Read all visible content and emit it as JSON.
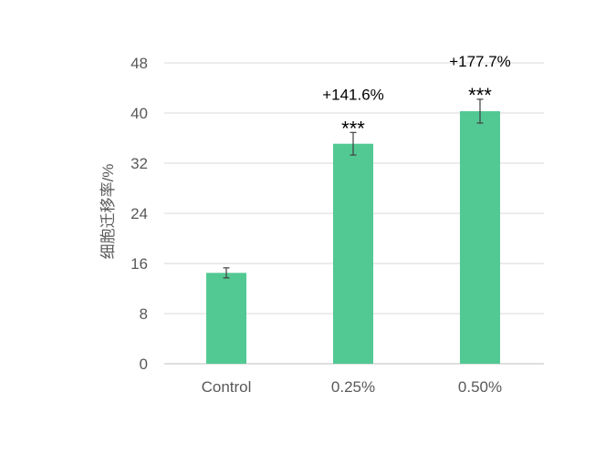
{
  "chart_data": {
    "type": "bar",
    "ylabel": "细胞迁移率/%",
    "categories": [
      "Control",
      "0.25%",
      "0.50%"
    ],
    "values": [
      14.5,
      35.1,
      40.3
    ],
    "errors": [
      0.8,
      1.8,
      1.9
    ],
    "significance": [
      "",
      "***",
      "***"
    ],
    "change_labels": [
      "",
      "+141.6%",
      "+177.7%"
    ],
    "ylim": [
      0,
      48
    ],
    "yticks": [
      0,
      8,
      16,
      24,
      32,
      40,
      48
    ],
    "grid": true,
    "bar_color": "#52c993",
    "error_color": "#404040",
    "grid_color": "#d9d9d9"
  }
}
